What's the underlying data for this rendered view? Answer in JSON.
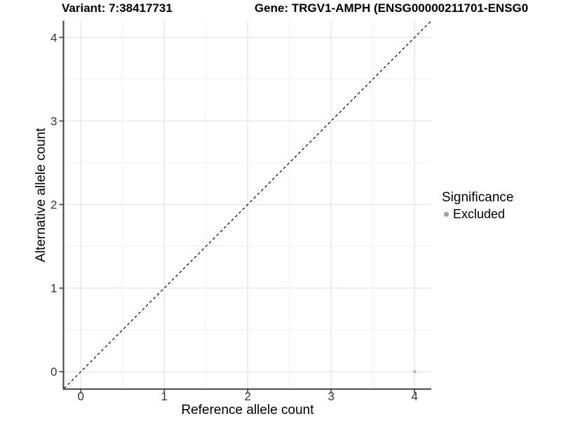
{
  "figure": {
    "variant_title": "Variant: 7:38417731",
    "gene_title": "Gene: TRGV1-AMPH (ENSG00000211701-ENSG0",
    "background": "#ffffff"
  },
  "legend": {
    "title": "Significance",
    "items": [
      {
        "label": "Excluded",
        "color": "#a0a0a0"
      }
    ]
  },
  "chart_data": {
    "type": "scatter",
    "title": "Variant: 7:38417731",
    "xlabel": "Reference allele count",
    "ylabel": "Alternative allele count",
    "xlim": [
      -0.2,
      4.2
    ],
    "ylim": [
      -0.2,
      4.2
    ],
    "x_ticks": [
      0,
      1,
      2,
      3,
      4
    ],
    "y_ticks": [
      0,
      1,
      2,
      3,
      4
    ],
    "x_minor_ticks": [
      0.5,
      1.5,
      2.5,
      3.5
    ],
    "y_minor_ticks": [
      0.5,
      1.5,
      2.5,
      3.5
    ],
    "grid": true,
    "legend_position": "right",
    "series": [
      {
        "name": "Excluded",
        "color": "#bdbdbd",
        "point_radius": 2.5,
        "points": [
          {
            "x": 4,
            "y": 0
          }
        ]
      }
    ],
    "reference_line": {
      "type": "identity",
      "style": "dashed",
      "color": "#000000",
      "from": [
        -0.2,
        -0.2
      ],
      "to": [
        4.2,
        4.2
      ]
    },
    "colors": {
      "grid_major": "#e7e7e7",
      "grid_minor": "#efefef",
      "axis_line": "#3f3f3f",
      "tick_mark": "#3f3f3f",
      "tick_label": "#333333"
    }
  }
}
